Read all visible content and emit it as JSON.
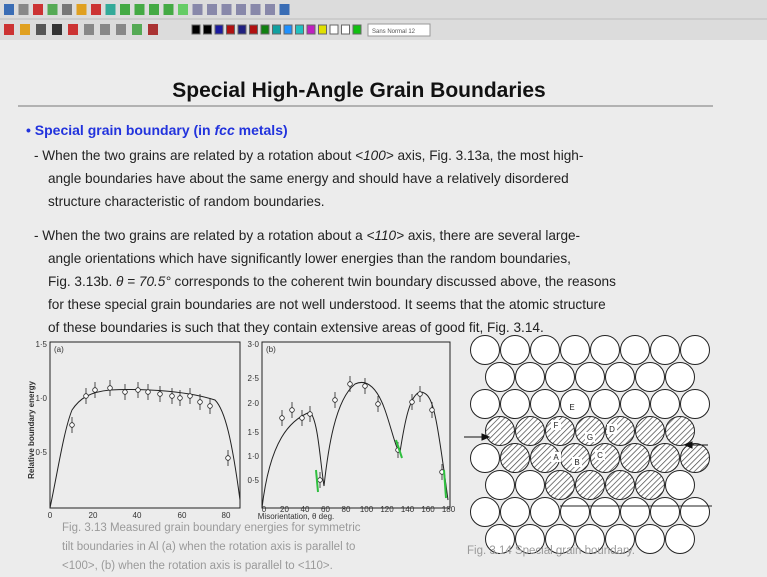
{
  "toolbar": {
    "font_box": "Sans Normal 12"
  },
  "slide": {
    "title": "Special High-Angle Grain Boundaries",
    "bullet": [
      {
        "text": "• Special grain boundary (in ",
        "italic": false
      },
      {
        "text": "fcc",
        "italic": true
      },
      {
        "text": " metals)",
        "italic": false
      }
    ],
    "paragraphs": [
      [
        [
          {
            "text": "- When the two grains are related by a rotation about ",
            "italic": false
          },
          {
            "text": "<100>",
            "italic": true
          },
          {
            "text": " axis, Fig. 3.13a, the most high-",
            "italic": false
          }
        ],
        [
          {
            "text": "angle boundaries have about the same energy and should have a relatively disordered",
            "italic": false
          }
        ],
        [
          {
            "text": "structure characteristic of random boundaries.",
            "italic": false
          }
        ]
      ],
      [
        [
          {
            "text": "- When the two grains are related by a rotation about a ",
            "italic": false
          },
          {
            "text": "<110>",
            "italic": true
          },
          {
            "text": " axis, there are several large-",
            "italic": false
          }
        ],
        [
          {
            "text": "angle orientations which have significantly lower energies than the random boundaries,",
            "italic": false
          }
        ],
        [
          {
            "text": "Fig. 3.13b. ",
            "italic": false
          },
          {
            "text": "θ = 70.5°",
            "italic": true
          },
          {
            "text": " corresponds to the coherent twin boundary discussed above, the reasons",
            "italic": false
          }
        ],
        [
          {
            "text": "for these special grain boundaries are not well understood. It seems that the atomic structure",
            "italic": false
          }
        ],
        [
          {
            "text": "of these boundaries is such that they contain extensive areas of good fit, Fig. 3.14.",
            "italic": false
          }
        ]
      ]
    ],
    "figure_3_13": {
      "panel_a": {
        "label": "(a)",
        "y_ticks": [
          "1·5",
          "1·0",
          "0·5"
        ],
        "x_ticks": [
          "0",
          "20",
          "40",
          "60",
          "80"
        ],
        "y_label": "Relative boundary energy",
        "x_label": "Misorientation, θ deg."
      },
      "panel_b": {
        "label": "(b)",
        "y_ticks": [
          "3·0",
          "2·5",
          "2·0",
          "1·5",
          "1·0",
          "0·5"
        ],
        "x_ticks": [
          "0",
          "20",
          "40",
          "60",
          "80",
          "100",
          "120",
          "140",
          "160",
          "180"
        ]
      },
      "caption": [
        [
          {
            "text": "Fig. 3.13",
            "italic": false
          },
          {
            "text": " Measured grain boundary energies for symmetric",
            "italic": false
          }
        ],
        [
          {
            "text": "tilt boundaries in Al (a) when the rotation axis is parallel to",
            "italic": false
          }
        ],
        [
          {
            "text": "<100>, (b) when the rotation axis is parallel to <110>.",
            "italic": false
          }
        ]
      ]
    },
    "figure_3_14": {
      "atom_labels": [
        "A",
        "B",
        "C",
        "D",
        "E",
        "F",
        "G"
      ],
      "caption": [
        [
          {
            "text": "Fig. 3.14",
            "italic": false
          },
          {
            "text": " Special grain boundary.",
            "italic": false
          }
        ]
      ]
    }
  }
}
